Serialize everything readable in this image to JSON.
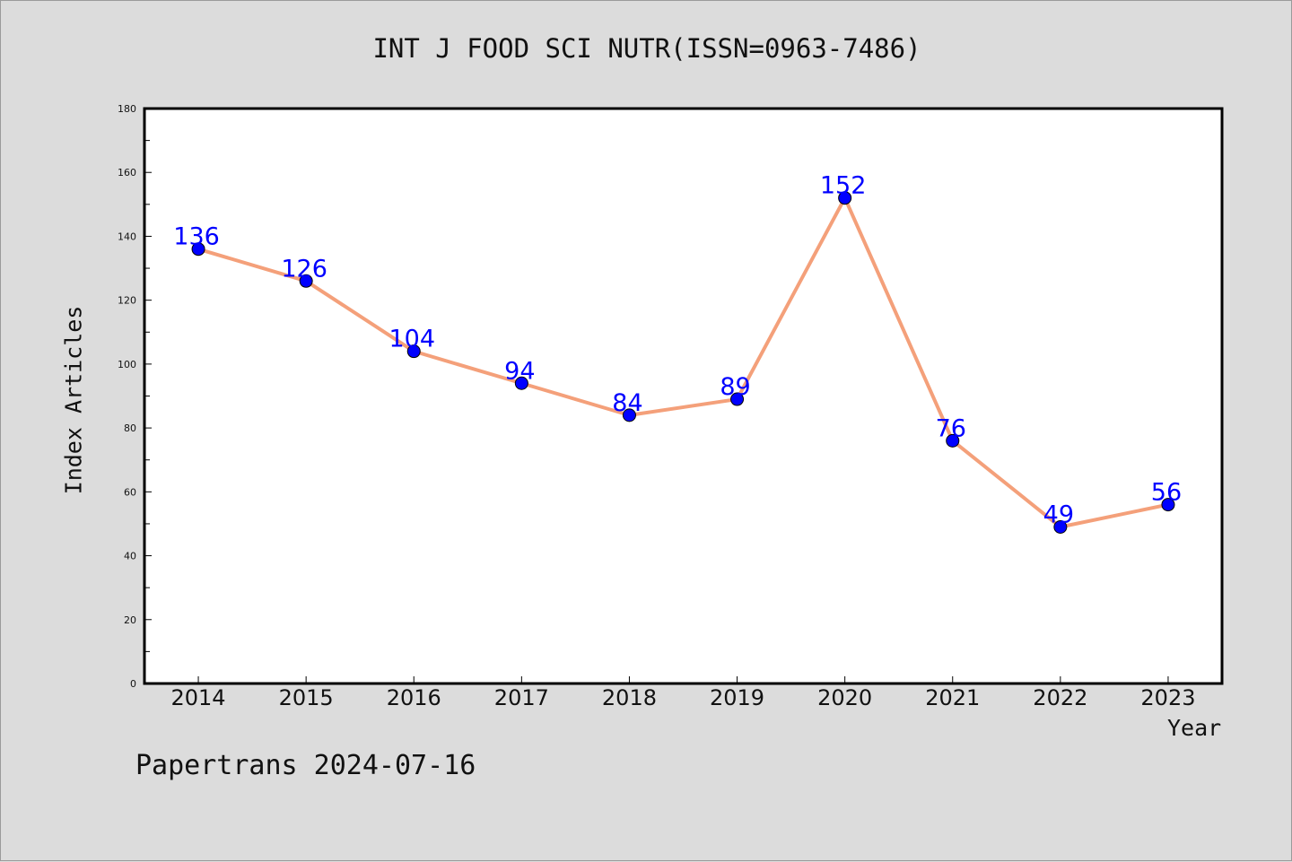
{
  "chart_data": {
    "type": "line",
    "title": "INT J FOOD SCI NUTR(ISSN=0963-7486)",
    "xlabel": "Year",
    "ylabel": "Index Articles",
    "categories": [
      "2014",
      "2015",
      "2016",
      "2017",
      "2018",
      "2019",
      "2020",
      "2021",
      "2022",
      "2023"
    ],
    "values": [
      136,
      126,
      104,
      94,
      84,
      89,
      152,
      76,
      49,
      56
    ],
    "ylim": [
      0,
      180
    ],
    "yticks": [
      0,
      20,
      40,
      60,
      80,
      100,
      120,
      140,
      160,
      180
    ],
    "grid": false,
    "line_color": "#f4a07a",
    "marker_color": "#0000ff",
    "label_color": "#0000ff",
    "footer": "Papertrans 2024-07-16"
  }
}
